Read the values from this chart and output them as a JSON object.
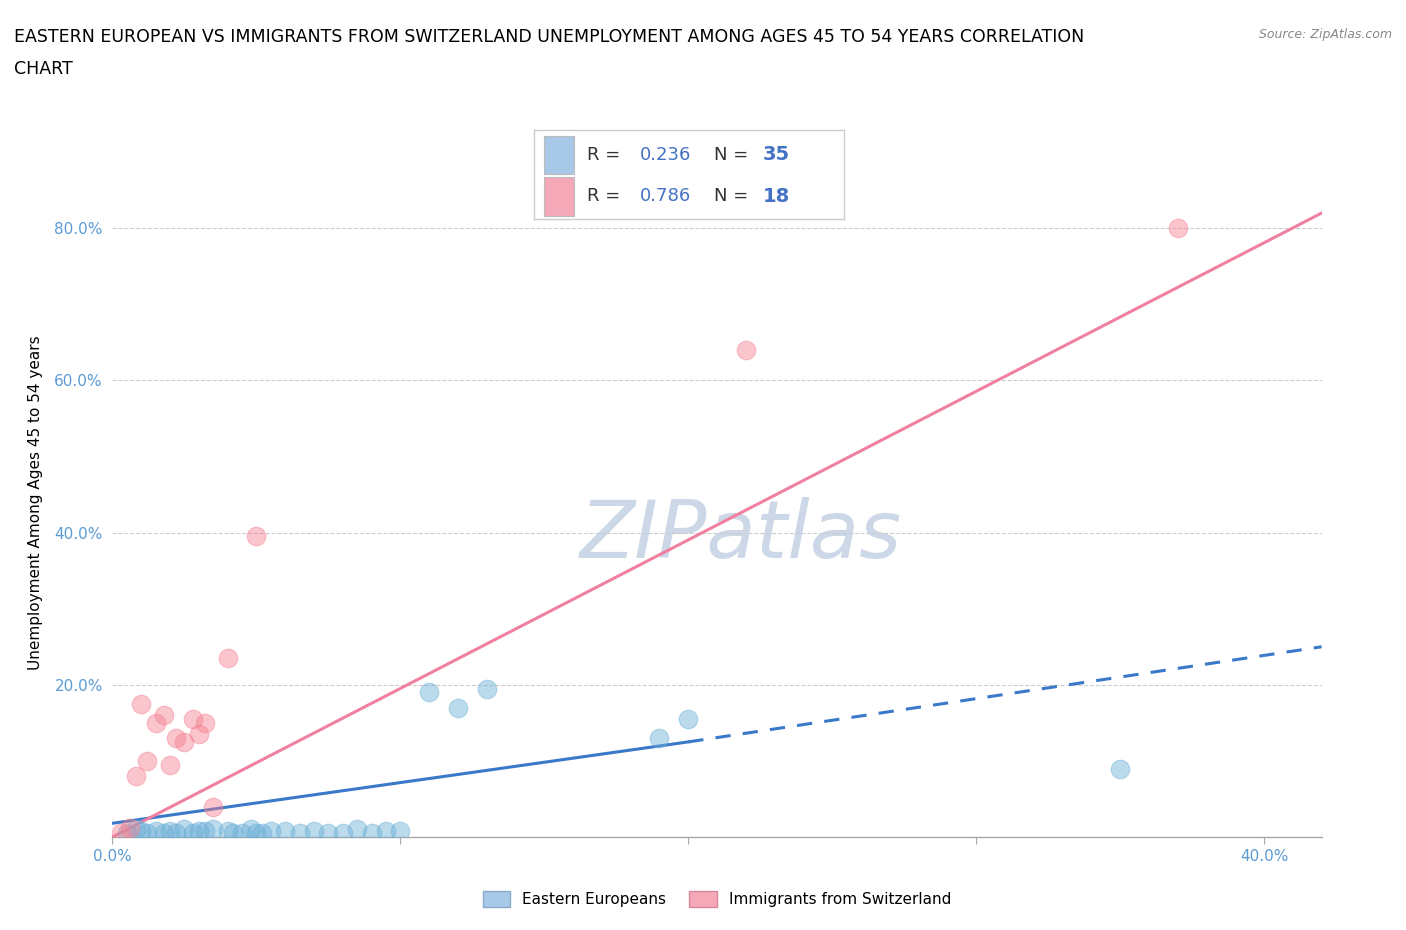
{
  "title_line1": "EASTERN EUROPEAN VS IMMIGRANTS FROM SWITZERLAND UNEMPLOYMENT AMONG AGES 45 TO 54 YEARS CORRELATION",
  "title_line2": "CHART",
  "source": "Source: ZipAtlas.com",
  "ylabel": "Unemployment Among Ages 45 to 54 years",
  "xlim": [
    0.0,
    0.42
  ],
  "ylim": [
    0.0,
    0.88
  ],
  "xticks": [
    0.0,
    0.1,
    0.2,
    0.3,
    0.4
  ],
  "xtick_labels": [
    "0.0%",
    "",
    "",
    "",
    "40.0%"
  ],
  "yticks": [
    0.0,
    0.2,
    0.4,
    0.6,
    0.8
  ],
  "ytick_labels": [
    "",
    "20.0%",
    "40.0%",
    "60.0%",
    "80.0%"
  ],
  "corr_legend": [
    {
      "R": "0.236",
      "N": "35",
      "box_color": "#a8c8e8"
    },
    {
      "R": "0.786",
      "N": "18",
      "box_color": "#f4a8b8"
    }
  ],
  "eastern_europeans": [
    [
      0.005,
      0.005
    ],
    [
      0.008,
      0.01
    ],
    [
      0.01,
      0.008
    ],
    [
      0.012,
      0.005
    ],
    [
      0.015,
      0.008
    ],
    [
      0.018,
      0.005
    ],
    [
      0.02,
      0.008
    ],
    [
      0.022,
      0.005
    ],
    [
      0.025,
      0.01
    ],
    [
      0.028,
      0.005
    ],
    [
      0.03,
      0.008
    ],
    [
      0.032,
      0.008
    ],
    [
      0.035,
      0.01
    ],
    [
      0.04,
      0.008
    ],
    [
      0.042,
      0.005
    ],
    [
      0.045,
      0.005
    ],
    [
      0.048,
      0.01
    ],
    [
      0.05,
      0.005
    ],
    [
      0.052,
      0.005
    ],
    [
      0.055,
      0.008
    ],
    [
      0.06,
      0.008
    ],
    [
      0.065,
      0.005
    ],
    [
      0.07,
      0.008
    ],
    [
      0.075,
      0.005
    ],
    [
      0.08,
      0.005
    ],
    [
      0.085,
      0.01
    ],
    [
      0.09,
      0.005
    ],
    [
      0.095,
      0.008
    ],
    [
      0.1,
      0.008
    ],
    [
      0.11,
      0.19
    ],
    [
      0.12,
      0.17
    ],
    [
      0.13,
      0.195
    ],
    [
      0.19,
      0.13
    ],
    [
      0.2,
      0.155
    ],
    [
      0.35,
      0.09
    ]
  ],
  "swiss_immigrants": [
    [
      0.003,
      0.005
    ],
    [
      0.006,
      0.012
    ],
    [
      0.008,
      0.08
    ],
    [
      0.01,
      0.175
    ],
    [
      0.012,
      0.1
    ],
    [
      0.015,
      0.15
    ],
    [
      0.018,
      0.16
    ],
    [
      0.02,
      0.095
    ],
    [
      0.022,
      0.13
    ],
    [
      0.025,
      0.125
    ],
    [
      0.028,
      0.155
    ],
    [
      0.03,
      0.135
    ],
    [
      0.032,
      0.15
    ],
    [
      0.035,
      0.04
    ],
    [
      0.04,
      0.235
    ],
    [
      0.05,
      0.395
    ],
    [
      0.22,
      0.64
    ],
    [
      0.37,
      0.8
    ]
  ],
  "blue_line_solid": {
    "x": [
      0.0,
      0.2
    ],
    "y": [
      0.018,
      0.125
    ]
  },
  "blue_line_dashed": {
    "x": [
      0.2,
      0.42
    ],
    "y": [
      0.125,
      0.25
    ]
  },
  "pink_line": {
    "x": [
      0.0,
      0.42
    ],
    "y": [
      0.0,
      0.82
    ]
  },
  "dot_color_eastern": "#6aaed6",
  "dot_color_swiss": "#f48090",
  "line_color_eastern": "#3a78c9",
  "line_color_swiss": "#f080a0",
  "background_color": "#ffffff",
  "grid_color": "#cccccc",
  "watermark_text": "ZIPatlas",
  "watermark_color": "#ccd8e8",
  "title_fontsize": 12.5,
  "tick_fontsize": 11,
  "ylabel_fontsize": 11
}
